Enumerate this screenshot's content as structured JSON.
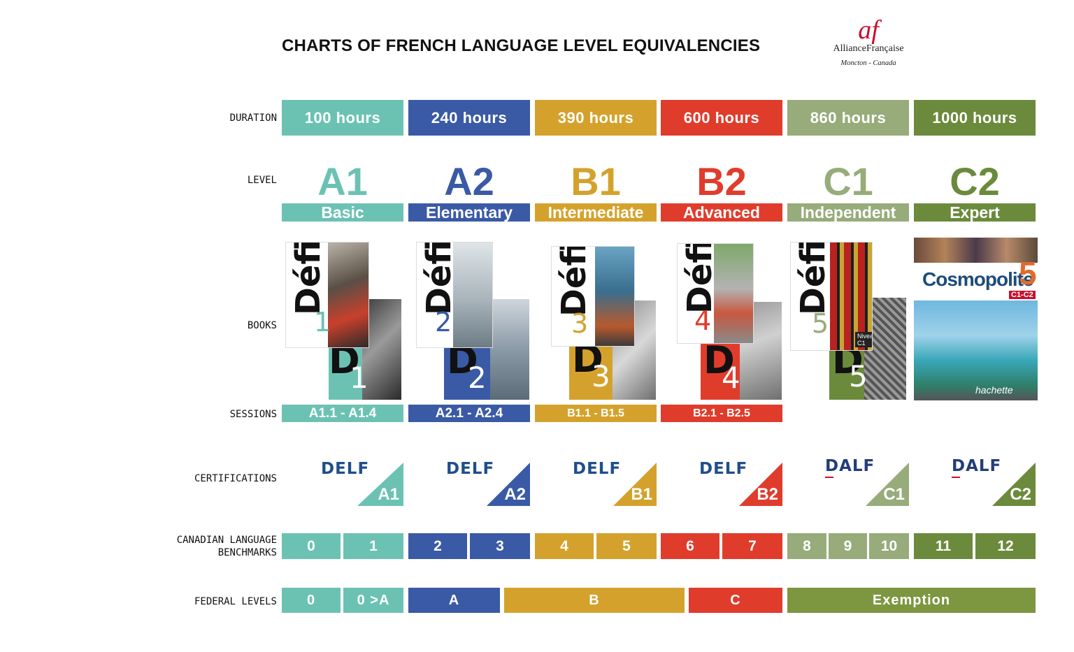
{
  "title": "CHARTS OF FRENCH LANGUAGE LEVEL EQUIVALENCIES",
  "logo": {
    "mark": "af",
    "name": "AllianceFrançaise",
    "location": "Moncton - Canada"
  },
  "row_labels": {
    "duration": "DURATION",
    "level": "LEVEL",
    "books": "BOOKS",
    "sessions": "SESSIONS",
    "certifications": "CERTIFICATIONS",
    "clb_line1": "CANADIAN LANGUAGE",
    "clb_line2": "BENCHMARKS",
    "federal": "FEDERAL LEVELS"
  },
  "colors": {
    "a1": "#6bc2b3",
    "a2": "#3a5aa6",
    "b1": "#d4a22c",
    "b2": "#e03c2c",
    "c1": "#97ac7a",
    "c2": "#6b8a3c",
    "exemption": "#7d9640",
    "delf_text": "#1f4e8c",
    "dalf_text": "#243d7a"
  },
  "levels": [
    {
      "duration": "100 hours",
      "code": "A1",
      "name": "Basic",
      "sessions": "A1.1 - A1.4",
      "cert_name": "DELF",
      "cert_level": "A1",
      "book_word": "Défi",
      "book_number": "1"
    },
    {
      "duration": "240 hours",
      "code": "A2",
      "name": "Elementary",
      "sessions": "A2.1 - A2.4",
      "cert_name": "DELF",
      "cert_level": "A2",
      "book_word": "Défi",
      "book_number": "2"
    },
    {
      "duration": "390 hours",
      "code": "B1",
      "name": "Intermediate",
      "sessions": "B1.1 - B1.5",
      "cert_name": "DELF",
      "cert_level": "B1",
      "book_word": "Défi",
      "book_number": "3"
    },
    {
      "duration": "600 hours",
      "code": "B2",
      "name": "Advanced",
      "sessions": "B2.1 - B2.5",
      "cert_name": "DELF",
      "cert_level": "B2",
      "book_word": "Défi",
      "book_number": "4"
    },
    {
      "duration": "860 hours",
      "code": "C1",
      "name": "Independent",
      "sessions": "",
      "cert_name": "DALF",
      "cert_level": "C1",
      "book_word": "Défi",
      "book_number": "5",
      "book_tag": "Niveau C1"
    },
    {
      "duration": "1000 hours",
      "code": "C2",
      "name": "Expert",
      "sessions": "",
      "cert_name": "DALF",
      "cert_level": "C2",
      "book_word": "Cosmopolite",
      "book_number": "5",
      "book_tag": "C1-C2",
      "book_publisher": "hachette"
    }
  ],
  "clb": [
    "0",
    "1",
    "2",
    "3",
    "4",
    "5",
    "6",
    "7",
    "8",
    "9",
    "10",
    "11",
    "12"
  ],
  "federal": [
    "0",
    "0 >A",
    "A",
    "B",
    "C",
    "Exemption"
  ]
}
